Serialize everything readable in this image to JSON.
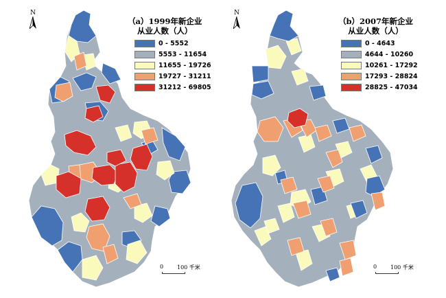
{
  "panels": [
    {
      "title_line1": "（a）1999年新企业",
      "title_line2": "从业人数（人）",
      "legend": [
        {
          "label": "0 - 5552",
          "color": "#4673b5"
        },
        {
          "label": "5553 - 11654",
          "color": "#a4b1bd"
        },
        {
          "label": "11655 - 19726",
          "color": "#fafabc"
        },
        {
          "label": "19727 - 31211",
          "color": "#f0a070"
        },
        {
          "label": "31212 - 69805",
          "color": "#d5302a"
        }
      ],
      "north_label": "N",
      "scale": {
        "zero": "0",
        "max": "100",
        "unit": "千米"
      }
    },
    {
      "title_line1": "（b）2007年新企业",
      "title_line2": "从业人数（人）",
      "legend": [
        {
          "label": "0 - 4643",
          "color": "#4673b5"
        },
        {
          "label": "4644 - 10260",
          "color": "#a4b1bd"
        },
        {
          "label": "10261 - 17292",
          "color": "#fafabc"
        },
        {
          "label": "17293 - 28824",
          "color": "#f0a070"
        },
        {
          "label": "28825 - 47034",
          "color": "#d5302a"
        }
      ],
      "north_label": "N",
      "scale": {
        "zero": "0",
        "max": "100",
        "unit": "千米"
      }
    }
  ]
}
